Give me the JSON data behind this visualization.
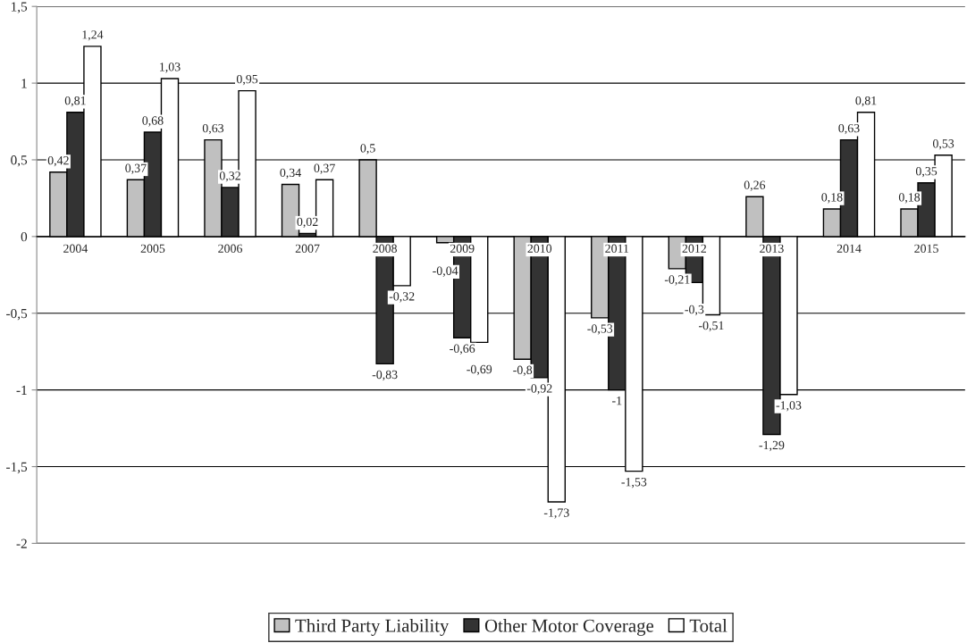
{
  "chart_data": {
    "type": "bar",
    "categories": [
      "2004",
      "2005",
      "2006",
      "2007",
      "2008",
      "2009",
      "2010",
      "2011",
      "2012",
      "2013",
      "2014",
      "2015"
    ],
    "series": [
      {
        "name": "Third Party Liability",
        "color": "#c0c0c0",
        "values": [
          0.42,
          0.37,
          0.63,
          0.34,
          0.5,
          -0.04,
          -0.8,
          -0.53,
          -0.21,
          0.26,
          0.18,
          0.18
        ],
        "value_labels": [
          "0,42",
          "0,37",
          "0,63",
          "0,34",
          "0,5",
          "-0,04",
          "-0,8",
          "-0,53",
          "-0,21",
          "0,26",
          "0,18",
          "0,18"
        ]
      },
      {
        "name": "Other Motor Coverage",
        "color": "#333333",
        "values": [
          0.81,
          0.68,
          0.32,
          0.02,
          -0.83,
          -0.66,
          -0.92,
          -1,
          -0.3,
          -1.29,
          0.63,
          0.35
        ],
        "value_labels": [
          "0,81",
          "0,68",
          "0,32",
          "0,02",
          "-0,83",
          "-0,66",
          "-0,92",
          "-1",
          "-0,3",
          "-1,29",
          "0,63",
          "0,35"
        ]
      },
      {
        "name": "Total",
        "color": "#ffffff",
        "values": [
          1.24,
          1.03,
          0.95,
          0.37,
          -0.32,
          -0.69,
          -1.73,
          -1.53,
          -0.51,
          -1.03,
          0.81,
          0.53
        ],
        "value_labels": [
          "1,24",
          "1,03",
          "0,95",
          "0,37",
          "-0,32",
          "-0,69",
          "-1,73",
          "-1,53",
          "-0,51",
          "-1,03",
          "0,81",
          "0,53"
        ]
      }
    ],
    "ylim": [
      -2,
      1.5
    ],
    "yticks": [
      {
        "value": -2,
        "label": "-2"
      },
      {
        "value": -1.5,
        "label": "-1,5"
      },
      {
        "value": -1,
        "label": "-1"
      },
      {
        "value": -0.5,
        "label": "-0,5"
      },
      0,
      {
        "value": 0.5,
        "label": "0,5"
      },
      1,
      {
        "value": 1.5,
        "label": "1,5"
      }
    ],
    "grid": "y",
    "legend": "bottom"
  }
}
